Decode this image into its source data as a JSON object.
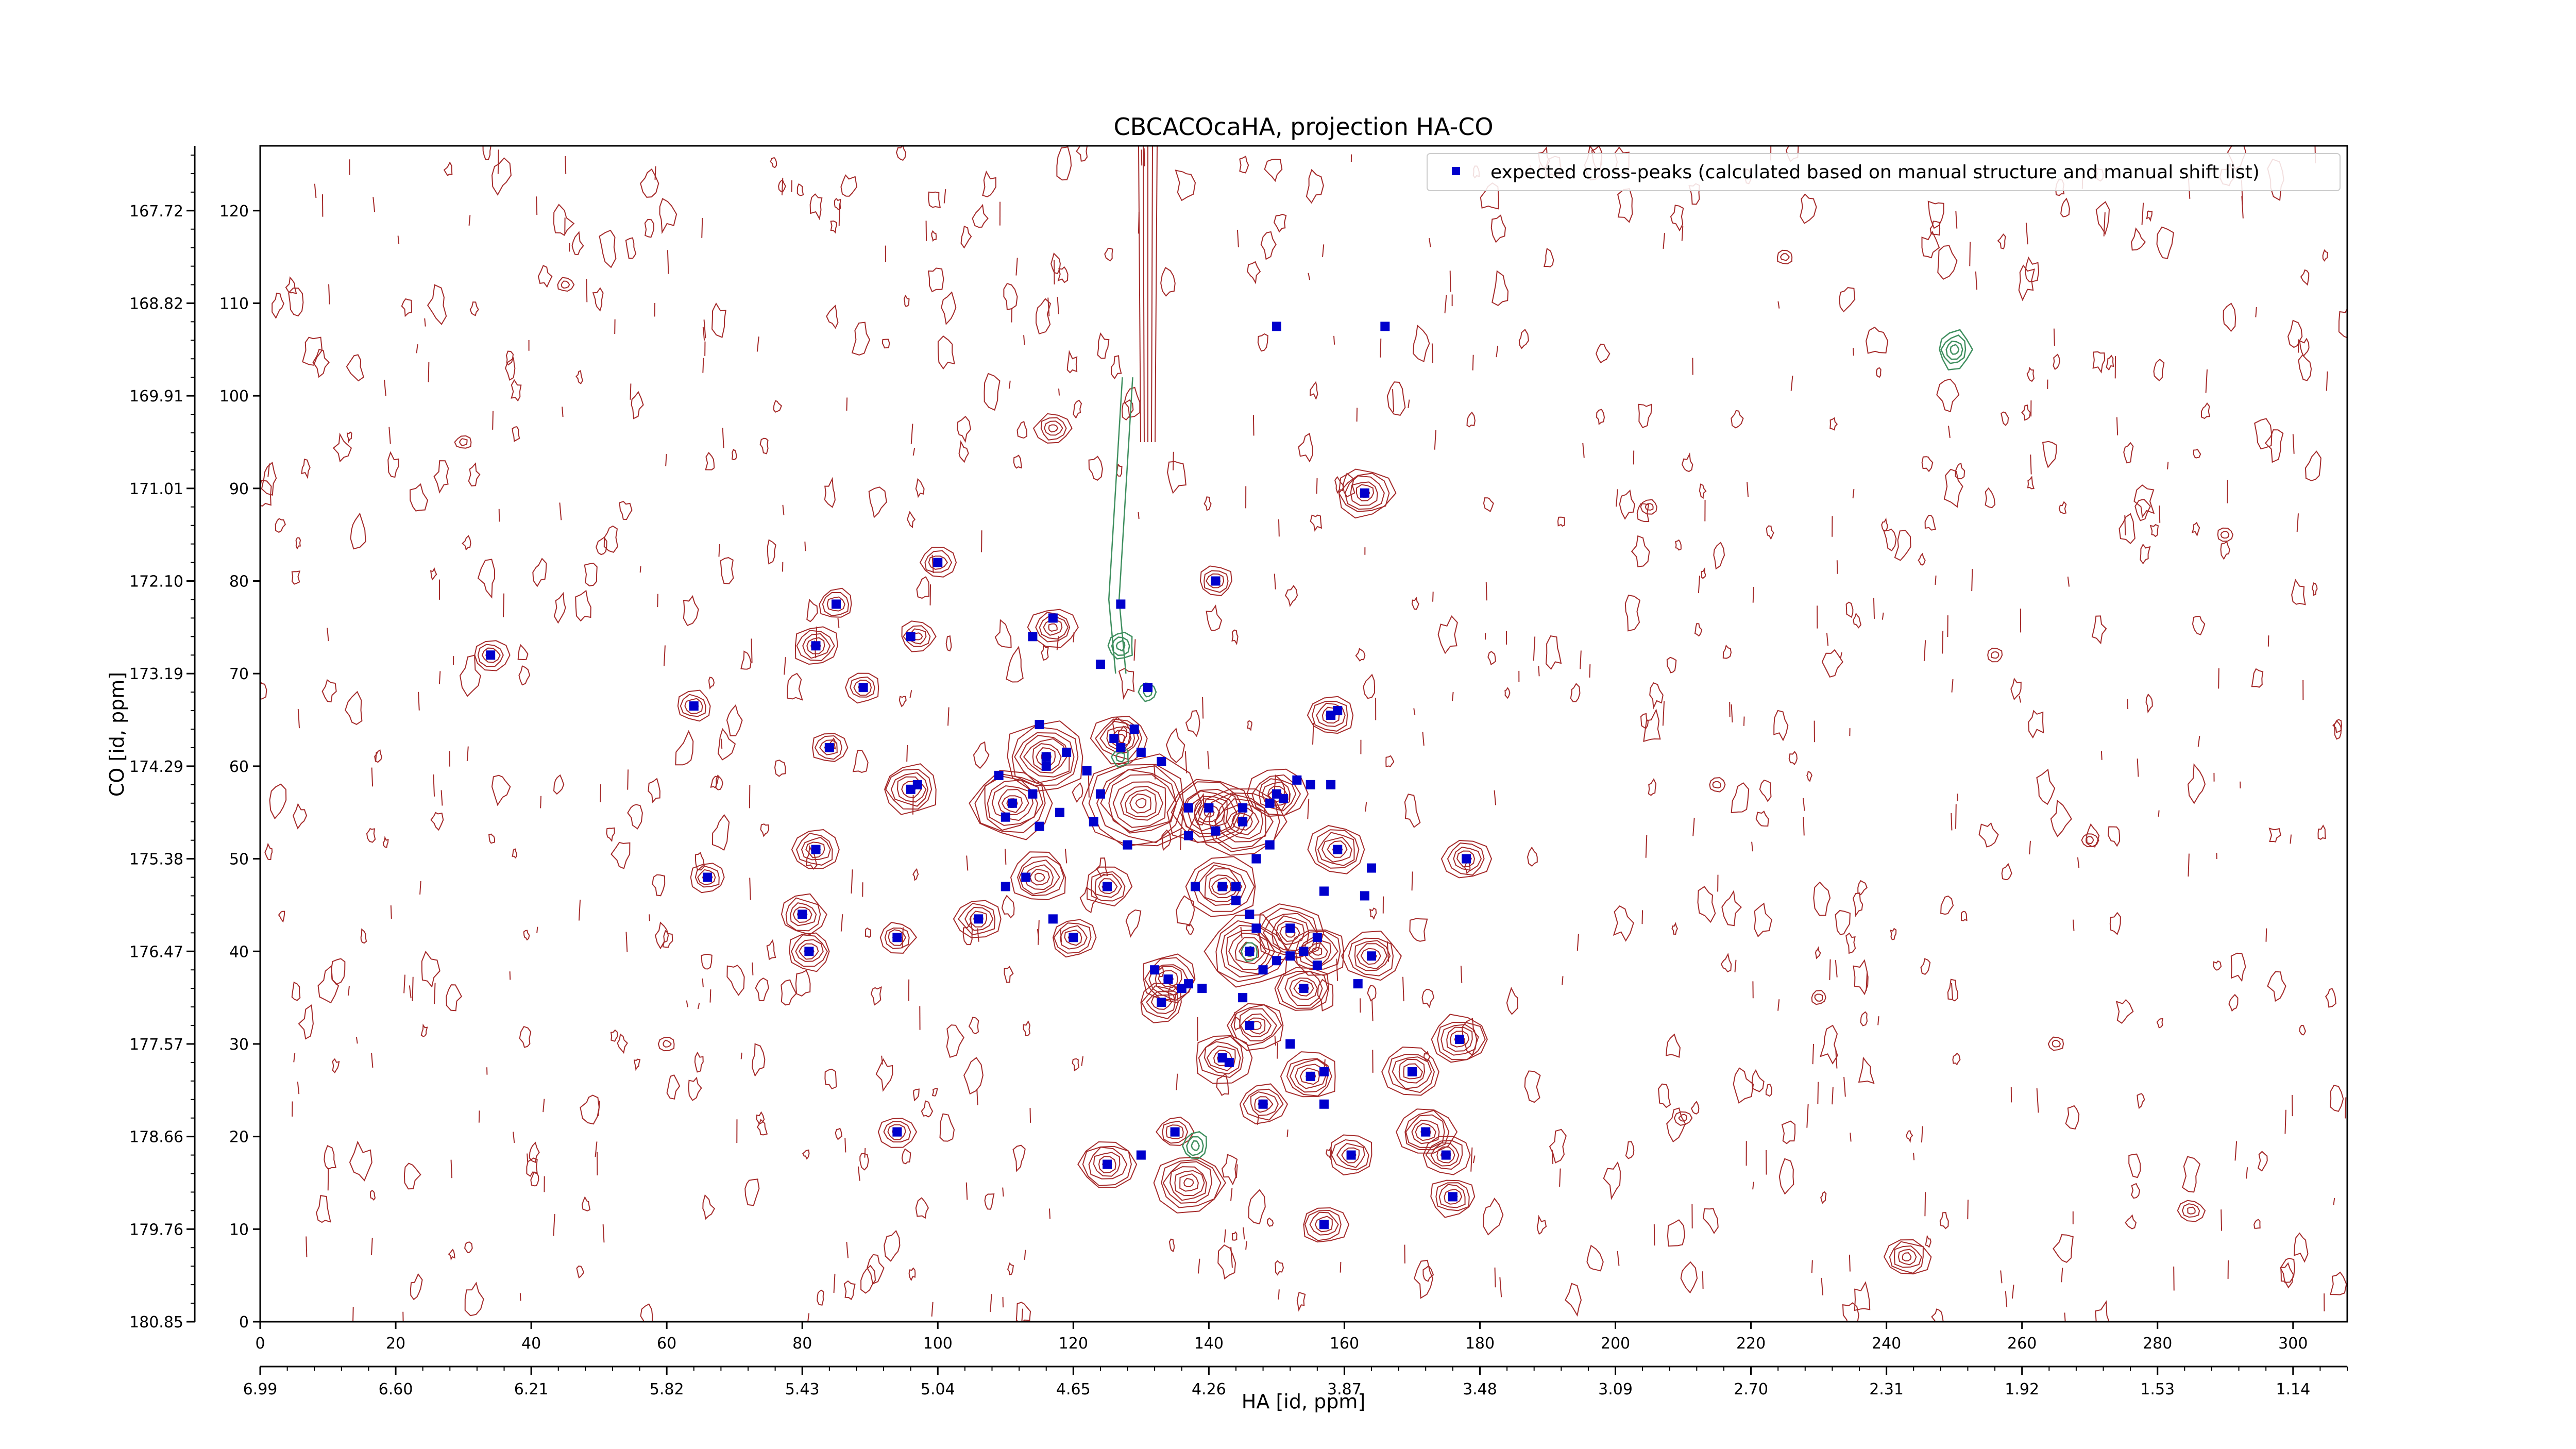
{
  "chart_data": {
    "type": "scatter",
    "title": "CBCACOcaHA, projection HA-CO",
    "xlabel": "HA [id, ppm]",
    "ylabel": "CO [id, ppm]",
    "xlim": [
      0,
      308
    ],
    "ylim": [
      0,
      127
    ],
    "x_ticks": [
      0,
      20,
      40,
      60,
      80,
      100,
      120,
      140,
      160,
      180,
      200,
      220,
      240,
      260,
      280,
      300
    ],
    "y_ticks": [
      0,
      10,
      20,
      30,
      40,
      50,
      60,
      70,
      80,
      90,
      100,
      110,
      120
    ],
    "x_ppm_ticks": [
      {
        "pos": 0,
        "label": "6.99"
      },
      {
        "pos": 20,
        "label": "6.60"
      },
      {
        "pos": 40,
        "label": "6.21"
      },
      {
        "pos": 60,
        "label": "5.82"
      },
      {
        "pos": 80,
        "label": "5.43"
      },
      {
        "pos": 100,
        "label": "5.04"
      },
      {
        "pos": 120,
        "label": "4.65"
      },
      {
        "pos": 140,
        "label": "4.26"
      },
      {
        "pos": 160,
        "label": "3.87"
      },
      {
        "pos": 180,
        "label": "3.48"
      },
      {
        "pos": 200,
        "label": "3.09"
      },
      {
        "pos": 220,
        "label": "2.70"
      },
      {
        "pos": 240,
        "label": "2.31"
      },
      {
        "pos": 260,
        "label": "1.92"
      },
      {
        "pos": 280,
        "label": "1.53"
      },
      {
        "pos": 300,
        "label": "1.14"
      }
    ],
    "y_ppm_ticks": [
      {
        "pos": 0,
        "label": "180.85"
      },
      {
        "pos": 10,
        "label": "179.76"
      },
      {
        "pos": 20,
        "label": "178.66"
      },
      {
        "pos": 30,
        "label": "177.57"
      },
      {
        "pos": 40,
        "label": "176.47"
      },
      {
        "pos": 50,
        "label": "175.38"
      },
      {
        "pos": 60,
        "label": "174.29"
      },
      {
        "pos": 70,
        "label": "173.19"
      },
      {
        "pos": 80,
        "label": "172.10"
      },
      {
        "pos": 90,
        "label": "171.01"
      },
      {
        "pos": 100,
        "label": "169.91"
      },
      {
        "pos": 110,
        "label": "168.82"
      },
      {
        "pos": 120,
        "label": "167.72"
      }
    ],
    "legend_position": "top-right",
    "grid": false,
    "series": [
      {
        "name": "expected cross-peaks (calculated based on manual structure and manual shift list)",
        "color": "#0000cc",
        "points": [
          [
            34,
            72
          ],
          [
            64,
            66.5
          ],
          [
            66,
            48
          ],
          [
            80,
            44
          ],
          [
            81,
            40
          ],
          [
            82,
            51
          ],
          [
            82,
            73
          ],
          [
            84,
            62
          ],
          [
            85,
            77.5
          ],
          [
            89,
            68.5
          ],
          [
            94,
            41.5
          ],
          [
            94,
            20.5
          ],
          [
            96,
            57.5
          ],
          [
            97,
            58
          ],
          [
            96,
            74
          ],
          [
            100,
            82
          ],
          [
            106,
            43.5
          ],
          [
            109,
            59
          ],
          [
            110,
            54.5
          ],
          [
            110,
            47
          ],
          [
            111,
            56
          ],
          [
            113,
            48
          ],
          [
            114,
            57
          ],
          [
            114,
            74
          ],
          [
            115,
            64.5
          ],
          [
            115,
            53.5
          ],
          [
            116,
            61
          ],
          [
            116,
            60
          ],
          [
            117,
            76
          ],
          [
            117,
            43.5
          ],
          [
            118,
            55
          ],
          [
            119,
            61.5
          ],
          [
            120,
            41.5
          ],
          [
            122,
            59.5
          ],
          [
            123,
            54
          ],
          [
            124,
            71
          ],
          [
            124,
            57
          ],
          [
            125,
            47
          ],
          [
            125,
            17
          ],
          [
            126,
            63
          ],
          [
            127,
            62
          ],
          [
            127,
            77.5
          ],
          [
            128,
            51.5
          ],
          [
            129,
            64
          ],
          [
            130,
            61.5
          ],
          [
            130,
            18
          ],
          [
            131,
            68.5
          ],
          [
            132,
            38
          ],
          [
            133,
            34.5
          ],
          [
            133,
            60.5
          ],
          [
            134,
            37
          ],
          [
            135,
            20.5
          ],
          [
            136,
            36
          ],
          [
            137,
            55.5
          ],
          [
            137,
            52.5
          ],
          [
            137,
            36.5
          ],
          [
            138,
            47
          ],
          [
            139,
            36
          ],
          [
            140,
            55.5
          ],
          [
            141,
            53
          ],
          [
            141,
            80
          ],
          [
            142,
            47
          ],
          [
            142,
            28.5
          ],
          [
            143,
            28
          ],
          [
            144,
            47
          ],
          [
            144,
            45.5
          ],
          [
            145,
            55.5
          ],
          [
            145,
            54
          ],
          [
            145,
            35
          ],
          [
            146,
            44
          ],
          [
            146,
            40
          ],
          [
            146,
            32
          ],
          [
            147,
            42.5
          ],
          [
            147,
            50
          ],
          [
            148,
            38
          ],
          [
            148,
            23.5
          ],
          [
            149,
            56
          ],
          [
            149,
            51.5
          ],
          [
            150,
            57
          ],
          [
            150,
            39
          ],
          [
            151,
            56.5
          ],
          [
            152,
            30
          ],
          [
            152,
            42.5
          ],
          [
            152,
            39.5
          ],
          [
            153,
            58.5
          ],
          [
            154,
            36
          ],
          [
            154,
            40
          ],
          [
            155,
            58
          ],
          [
            155,
            26.5
          ],
          [
            156,
            41.5
          ],
          [
            156,
            38.5
          ],
          [
            157,
            46.5
          ],
          [
            157,
            27
          ],
          [
            157,
            23.5
          ],
          [
            157,
            10.5
          ],
          [
            158,
            58
          ],
          [
            158,
            65.5
          ],
          [
            159,
            66
          ],
          [
            159,
            51
          ],
          [
            161,
            18
          ],
          [
            162,
            36.5
          ],
          [
            163,
            89.5
          ],
          [
            163,
            46
          ],
          [
            164,
            49
          ],
          [
            164,
            39.5
          ],
          [
            170,
            27
          ],
          [
            172,
            20.5
          ],
          [
            175,
            18
          ],
          [
            176,
            13.5
          ],
          [
            177,
            30.5
          ],
          [
            178,
            50
          ],
          [
            150,
            107.5
          ],
          [
            166,
            107.5
          ]
        ]
      }
    ],
    "contour_peaks": {
      "positive_color": "#a52a2a",
      "negative_color": "#3f8f5f",
      "positive": [
        [
          34,
          72,
          4
        ],
        [
          64,
          66.5,
          4
        ],
        [
          66,
          48,
          4
        ],
        [
          80,
          44,
          5
        ],
        [
          81,
          40,
          5
        ],
        [
          82,
          51,
          5
        ],
        [
          82,
          73,
          5
        ],
        [
          84,
          62,
          4
        ],
        [
          85,
          77.5,
          4
        ],
        [
          89,
          68.5,
          4
        ],
        [
          94,
          41.5,
          4
        ],
        [
          94,
          20.5,
          4
        ],
        [
          96,
          57.5,
          6
        ],
        [
          97,
          74,
          4
        ],
        [
          100,
          82,
          4
        ],
        [
          106,
          43.5,
          5
        ],
        [
          111,
          56,
          8
        ],
        [
          115,
          48,
          6
        ],
        [
          116,
          61,
          8
        ],
        [
          117,
          75,
          5
        ],
        [
          120,
          41.5,
          5
        ],
        [
          125,
          47,
          5
        ],
        [
          125,
          17,
          6
        ],
        [
          127,
          63,
          6
        ],
        [
          130,
          56,
          10
        ],
        [
          133,
          34.5,
          5
        ],
        [
          134,
          37,
          6
        ],
        [
          135,
          20.5,
          4
        ],
        [
          137,
          15,
          7
        ],
        [
          140,
          55,
          8
        ],
        [
          141,
          80,
          4
        ],
        [
          142,
          47,
          7
        ],
        [
          142,
          28.5,
          6
        ],
        [
          145,
          54,
          8
        ],
        [
          146,
          40,
          8
        ],
        [
          147,
          32,
          6
        ],
        [
          148,
          23.5,
          5
        ],
        [
          150,
          57,
          6
        ],
        [
          152,
          42,
          7
        ],
        [
          154,
          36,
          6
        ],
        [
          155,
          26.5,
          6
        ],
        [
          156,
          40,
          6
        ],
        [
          157,
          10.5,
          5
        ],
        [
          158,
          65.5,
          5
        ],
        [
          159,
          51,
          6
        ],
        [
          161,
          18,
          5
        ],
        [
          163,
          89.5,
          6
        ],
        [
          164,
          39.5,
          6
        ],
        [
          170,
          27,
          6
        ],
        [
          172,
          20.5,
          6
        ],
        [
          175,
          18,
          5
        ],
        [
          176,
          13.5,
          5
        ],
        [
          177,
          30.5,
          6
        ],
        [
          178,
          50,
          5
        ],
        [
          117,
          96.5,
          4
        ],
        [
          243,
          7,
          5
        ],
        [
          285,
          12,
          3
        ],
        [
          256,
          72,
          2
        ],
        [
          230,
          35,
          2
        ],
        [
          270,
          52,
          2
        ],
        [
          30,
          95,
          2
        ],
        [
          205,
          88,
          2
        ],
        [
          215,
          58,
          2
        ],
        [
          265,
          30,
          2
        ],
        [
          290,
          85,
          2
        ],
        [
          210,
          22,
          2
        ],
        [
          60,
          30,
          2
        ],
        [
          45,
          112,
          2
        ],
        [
          225,
          115,
          2
        ]
      ],
      "negative": [
        [
          250,
          105,
          4
        ],
        [
          127,
          73,
          3
        ],
        [
          131,
          68,
          2
        ],
        [
          138,
          19,
          3
        ],
        [
          127,
          61,
          2
        ],
        [
          146,
          40,
          2
        ]
      ],
      "negative_ridge": [
        [
          128,
          102
        ],
        [
          127,
          90
        ],
        [
          126,
          78
        ],
        [
          127,
          70
        ]
      ]
    }
  }
}
